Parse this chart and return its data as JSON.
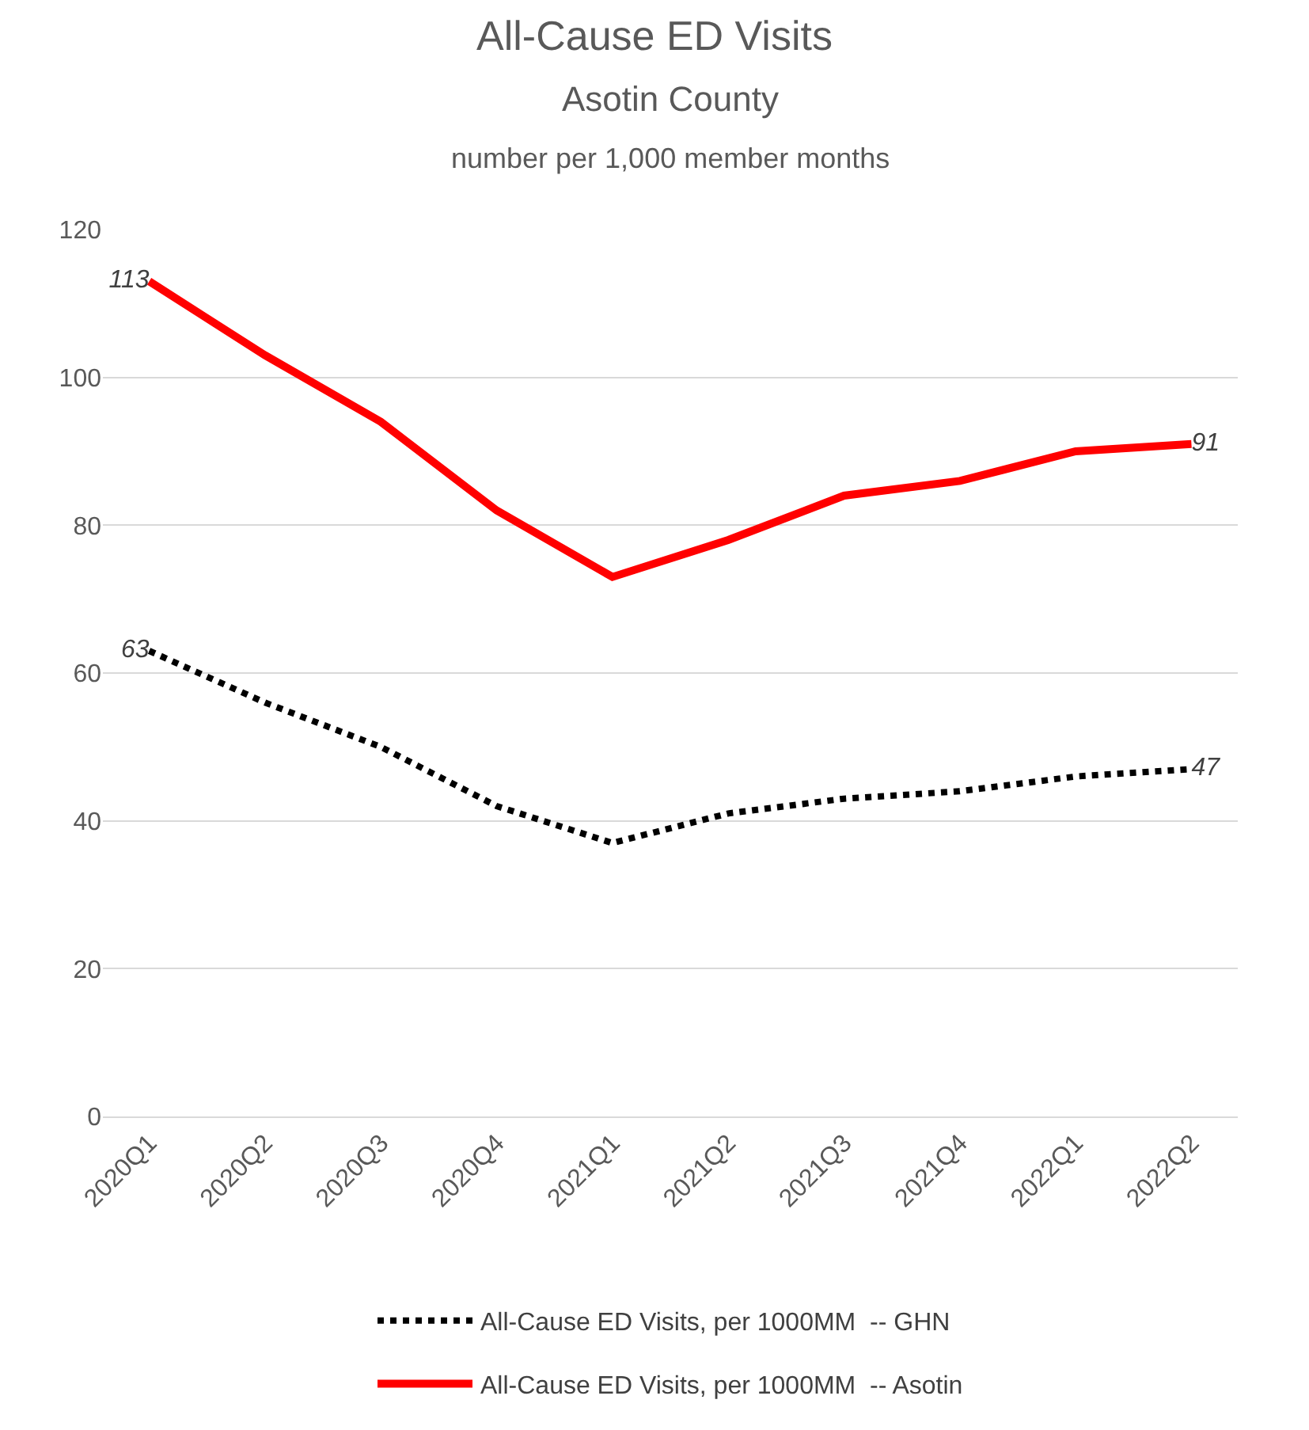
{
  "chart_data": {
    "type": "line",
    "title": "All-Cause ED Visits",
    "subtitle": "Asotin County",
    "annotations": [
      "number per 1,000 member months"
    ],
    "categories": [
      "2020Q1",
      "2020Q2",
      "2020Q3",
      "2020Q4",
      "2021Q1",
      "2021Q2",
      "2021Q3",
      "2021Q4",
      "2022Q1",
      "2022Q2"
    ],
    "series": [
      {
        "name": "All-Cause ED Visits, per 1000MM  -- GHN",
        "color": "#000000",
        "line_style": "dotted",
        "values": [
          63,
          56,
          50,
          42,
          37,
          41,
          43,
          44,
          46,
          47
        ],
        "value_labels": [
          "63",
          null,
          null,
          null,
          null,
          null,
          null,
          null,
          null,
          "47"
        ]
      },
      {
        "name": "All-Cause ED Visits, per 1000MM  -- Asotin",
        "color": "#ff0000",
        "line_style": "solid",
        "values": [
          113,
          103,
          94,
          82,
          73,
          78,
          84,
          86,
          90,
          91
        ],
        "value_labels": [
          "113",
          null,
          null,
          null,
          null,
          null,
          null,
          null,
          null,
          "91"
        ]
      }
    ],
    "ylim": [
      0,
      120
    ],
    "yticks": [
      0,
      20,
      40,
      60,
      80,
      100,
      120
    ],
    "grid": "y",
    "legend": "bottom",
    "marker": "none"
  }
}
